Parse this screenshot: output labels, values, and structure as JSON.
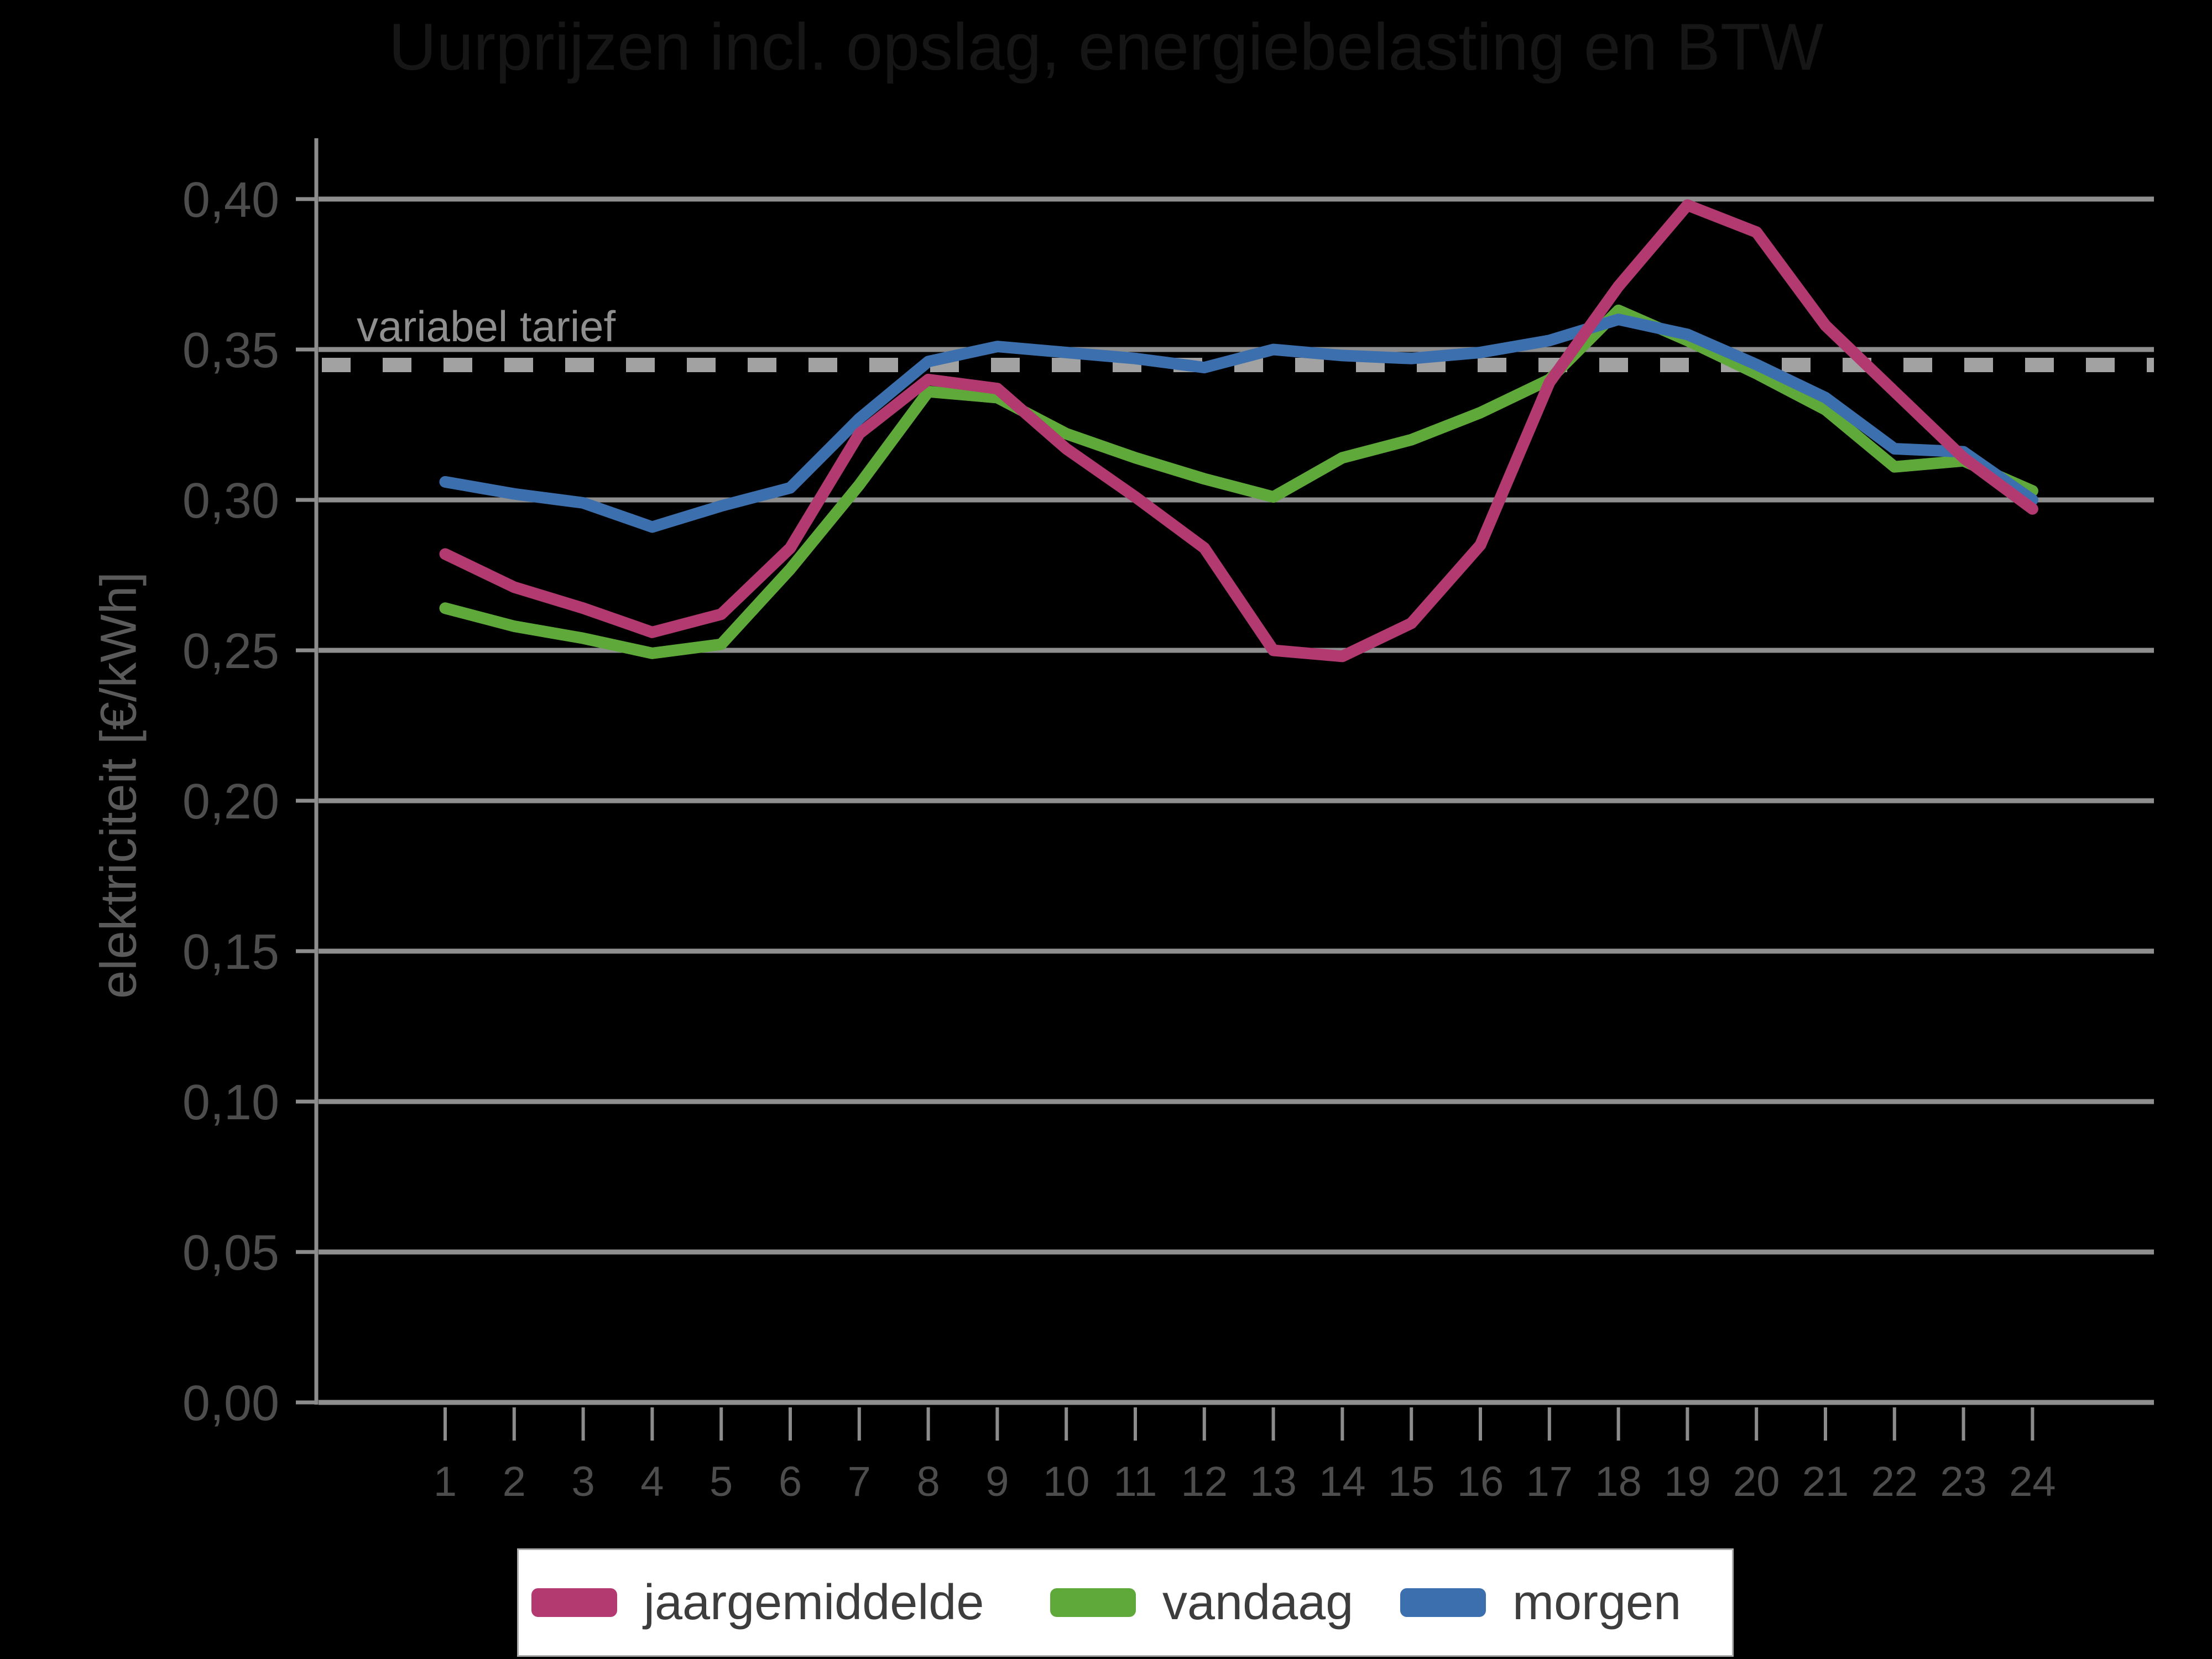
{
  "title": "Uurprijzen incl. opslag, energiebelasting en BTW",
  "axes": {
    "ylabel": "elektriciteit [€/kWh]",
    "y_tick_labels": [
      "0,40",
      "0,35",
      "0,30",
      "0,25",
      "0,20",
      "0,15",
      "0,10",
      "0,05",
      "0,00"
    ],
    "y_tick_values": [
      0.4,
      0.35,
      0.3,
      0.25,
      0.2,
      0.15,
      0.1,
      0.05,
      0.0
    ],
    "x_tick_labels": [
      "1",
      "2",
      "3",
      "4",
      "5",
      "6",
      "7",
      "8",
      "9",
      "10",
      "11",
      "12",
      "13",
      "14",
      "15",
      "16",
      "17",
      "18",
      "19",
      "20",
      "21",
      "22",
      "23",
      "24"
    ]
  },
  "annotation": "variabel tarief",
  "legend": [
    {
      "label": "jaargemiddelde",
      "color": "#b23a70"
    },
    {
      "label": "vandaag",
      "color": "#5fa93a"
    },
    {
      "label": "morgen",
      "color": "#3c6fad"
    }
  ],
  "colors": {
    "background": "#000000",
    "gridline": "#8e8e8e",
    "axis": "#8c8c8c",
    "tick_label": "#4d4d4d",
    "reference_line": "#a2a2a2",
    "annotation_text": "#8f8f8f",
    "legend_text": "#3d3d3d",
    "jaargemiddelde": "#b23a70",
    "vandaag": "#5fa93a",
    "morgen": "#3c6fad"
  },
  "chart_data": {
    "type": "line",
    "title": "Uurprijzen incl. opslag, energiebelasting en BTW",
    "xlabel": "",
    "ylabel": "elektriciteit [€/kWh]",
    "x": [
      1,
      2,
      3,
      4,
      5,
      6,
      7,
      8,
      9,
      10,
      11,
      12,
      13,
      14,
      15,
      16,
      17,
      18,
      19,
      20,
      21,
      22,
      23,
      24
    ],
    "ylim": [
      0.0,
      0.42
    ],
    "grid": true,
    "legend_position": "bottom",
    "reference_line": {
      "label": "variabel tarief",
      "value": 0.346,
      "style": "dashed"
    },
    "series": [
      {
        "name": "jaargemiddelde",
        "values": [
          0.282,
          0.271,
          0.264,
          0.256,
          0.262,
          0.284,
          0.322,
          0.34,
          0.337,
          0.317,
          0.301,
          0.284,
          0.25,
          0.248,
          0.259,
          0.285,
          0.339,
          0.371,
          0.398,
          0.389,
          0.358,
          0.336,
          0.314,
          0.297
        ]
      },
      {
        "name": "vandaag",
        "values": [
          0.264,
          0.258,
          0.254,
          0.249,
          0.252,
          0.277,
          0.305,
          0.336,
          0.334,
          0.322,
          0.314,
          0.307,
          0.301,
          0.314,
          0.32,
          0.329,
          0.34,
          0.363,
          0.353,
          0.342,
          0.33,
          0.311,
          0.313,
          0.303
        ]
      },
      {
        "name": "morgen",
        "values": [
          0.306,
          0.302,
          0.299,
          0.291,
          0.298,
          0.304,
          0.327,
          0.346,
          0.351,
          0.349,
          0.347,
          0.344,
          0.35,
          0.348,
          0.347,
          0.349,
          0.353,
          0.36,
          0.355,
          0.345,
          0.334,
          0.317,
          0.316,
          0.3
        ]
      }
    ]
  }
}
